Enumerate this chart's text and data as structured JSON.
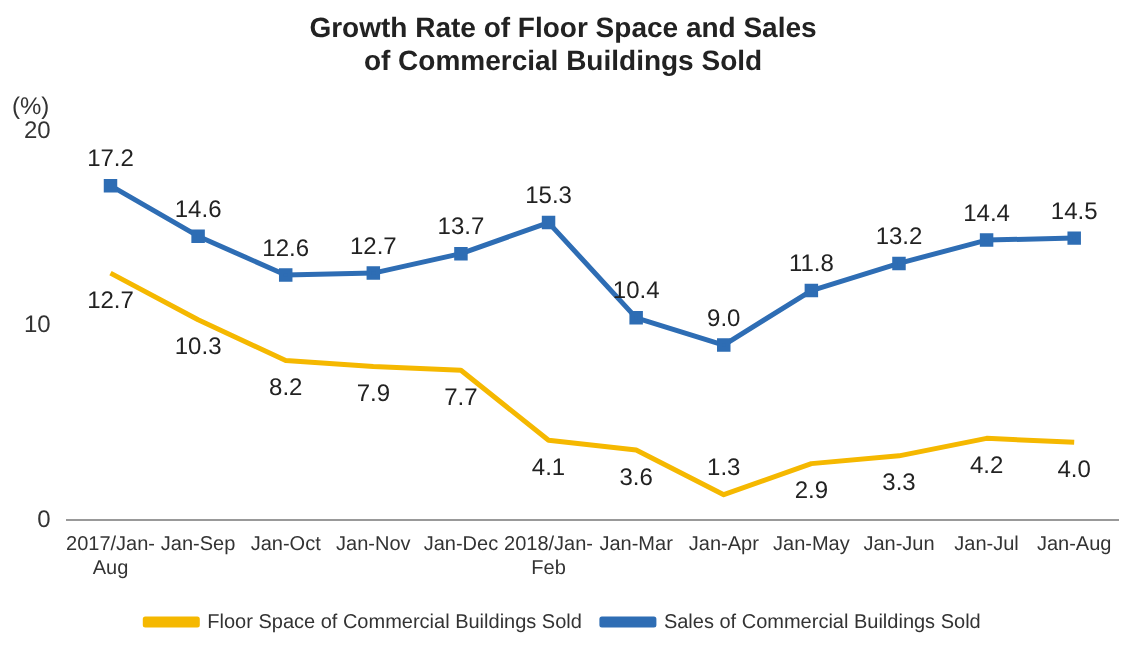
{
  "chart_data": {
    "type": "line",
    "title": "Growth Rate of Floor Space and Sales\nof Commercial Buildings Sold",
    "ylabel": "(%)",
    "categories": [
      "2017/Jan-Aug",
      "Jan-Sep",
      "Jan-Oct",
      "Jan-Nov",
      "Jan-Dec",
      "2018/Jan-Feb",
      "Jan-Mar",
      "Jan-Apr",
      "Jan-May",
      "Jan-Jun",
      "Jan-Jul",
      "Jan-Aug"
    ],
    "series": [
      {
        "name": "Floor Space of Commercial Buildings Sold",
        "color": "#f5b800",
        "marker": "none",
        "values": [
          12.7,
          10.3,
          8.2,
          7.9,
          7.7,
          4.1,
          3.6,
          1.3,
          2.9,
          3.3,
          4.2,
          4.0
        ],
        "value_labels": [
          "12.7",
          "10.3",
          "8.2",
          "7.9",
          "7.7",
          "4.1",
          "3.6",
          "1.3",
          "2.9",
          "3.3",
          "4.2",
          "4.0"
        ]
      },
      {
        "name": "Sales of Commercial Buildings Sold",
        "color": "#2e6db4",
        "marker": "square",
        "values": [
          17.2,
          14.6,
          12.6,
          12.7,
          13.7,
          15.3,
          10.4,
          9.0,
          11.8,
          13.2,
          14.4,
          14.5
        ],
        "value_labels": [
          "17.2",
          "14.6",
          "12.6",
          "12.7",
          "13.7",
          "15.3",
          "10.4",
          "9.0",
          "11.8",
          "13.2",
          "14.4",
          "14.5"
        ]
      }
    ],
    "ylim": [
      0,
      20
    ],
    "yticks": [
      0,
      10,
      20
    ],
    "grid": false,
    "legend": "bottom",
    "line_style": "solid"
  }
}
